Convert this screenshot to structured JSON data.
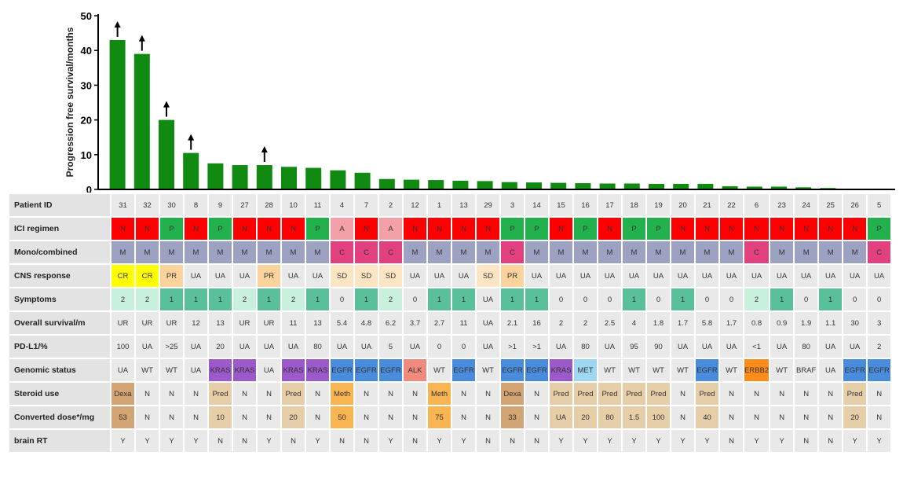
{
  "colors": {
    "bar": "#108a10",
    "N": "#ff0000",
    "P": "#22b14c",
    "A": "#f4a0a8",
    "M": "#9da2c3",
    "C": "#e2407f",
    "CR": "#ffff00",
    "PR": "#fcd39c",
    "SD": "#fde5c4",
    "sym2": "#c9efdd",
    "sym1": "#5ac09a",
    "KRAS": "#9b59c9",
    "EGFR": "#4a8cdc",
    "ALK": "#f08a7d",
    "MET": "#9fd6f2",
    "ERBB2": "#ff8c1a",
    "Dexa": "#d4a574",
    "Pred": "#e6cfa8",
    "Meth": "#f8b552"
  },
  "chart_data": {
    "type": "bar",
    "ylabel": "Progression free survival/months",
    "ylim": [
      0,
      50
    ],
    "yticks": [
      "0",
      "10",
      "20",
      "30",
      "40",
      "50"
    ],
    "categories": [
      "31",
      "32",
      "30",
      "8",
      "9",
      "27",
      "28",
      "10",
      "11",
      "4",
      "7",
      "2",
      "12",
      "1",
      "13",
      "29",
      "3",
      "14",
      "15",
      "16",
      "17",
      "18",
      "19",
      "20",
      "21",
      "22",
      "6",
      "23",
      "24",
      "25",
      "26",
      "5"
    ],
    "values": [
      43,
      39,
      20,
      10.5,
      7.5,
      7,
      7,
      6.5,
      6.2,
      5.5,
      4.8,
      3,
      2.8,
      2.7,
      2.5,
      2.4,
      2.1,
      2,
      1.9,
      1.8,
      1.7,
      1.7,
      1.6,
      1.6,
      1.6,
      0.9,
      0.8,
      0.8,
      0.6,
      0.4,
      0.2,
      0.1
    ],
    "ongoing": [
      true,
      true,
      true,
      true,
      false,
      false,
      true,
      false,
      false,
      false,
      false,
      false,
      false,
      false,
      false,
      false,
      false,
      false,
      false,
      false,
      false,
      false,
      false,
      false,
      false,
      false,
      false,
      false,
      false,
      false,
      false,
      false
    ]
  },
  "table": {
    "rows": [
      {
        "label": "Patient ID",
        "cells": [
          "31",
          "32",
          "30",
          "8",
          "9",
          "27",
          "28",
          "10",
          "11",
          "4",
          "7",
          "2",
          "12",
          "1",
          "13",
          "29",
          "3",
          "14",
          "15",
          "16",
          "17",
          "18",
          "19",
          "20",
          "21",
          "22",
          "6",
          "23",
          "24",
          "25",
          "26",
          "5"
        ],
        "colors": []
      },
      {
        "label": "ICI regimen",
        "cells": [
          "N",
          "N",
          "P",
          "N",
          "P",
          "N",
          "N",
          "N",
          "P",
          "A",
          "N",
          "A",
          "N",
          "N",
          "N",
          "N",
          "P",
          "P",
          "N",
          "P",
          "N",
          "P",
          "P",
          "N",
          "N",
          "N",
          "N",
          "N",
          "N",
          "N",
          "N",
          "P"
        ],
        "colors": [
          "N",
          "N",
          "P",
          "N",
          "P",
          "N",
          "N",
          "N",
          "P",
          "A",
          "N",
          "A",
          "N",
          "N",
          "N",
          "N",
          "P",
          "P",
          "N",
          "P",
          "N",
          "P",
          "P",
          "N",
          "N",
          "N",
          "N",
          "N",
          "N",
          "N",
          "N",
          "P"
        ]
      },
      {
        "label": "Mono/combined",
        "cells": [
          "M",
          "M",
          "M",
          "M",
          "M",
          "M",
          "M",
          "M",
          "M",
          "C",
          "C",
          "C",
          "M",
          "M",
          "M",
          "M",
          "C",
          "M",
          "M",
          "M",
          "M",
          "M",
          "M",
          "M",
          "M",
          "M",
          "C",
          "M",
          "M",
          "M",
          "M",
          "C"
        ],
        "colors": [
          "M",
          "M",
          "M",
          "M",
          "M",
          "M",
          "M",
          "M",
          "M",
          "C",
          "C",
          "C",
          "M",
          "M",
          "M",
          "M",
          "C",
          "M",
          "M",
          "M",
          "M",
          "M",
          "M",
          "M",
          "M",
          "M",
          "C",
          "M",
          "M",
          "M",
          "M",
          "C"
        ]
      },
      {
        "label": "CNS response",
        "cells": [
          "CR",
          "CR",
          "PR",
          "UA",
          "UA",
          "UA",
          "PR",
          "UA",
          "UA",
          "SD",
          "SD",
          "SD",
          "UA",
          "UA",
          "UA",
          "SD",
          "PR",
          "UA",
          "UA",
          "UA",
          "UA",
          "UA",
          "UA",
          "UA",
          "UA",
          "UA",
          "UA",
          "UA",
          "UA",
          "UA",
          "UA",
          "UA"
        ],
        "colors": [
          "CR",
          "CR",
          "PR",
          "",
          "",
          "",
          "PR",
          "",
          "",
          "SD",
          "SD",
          "SD",
          "",
          "",
          "",
          "SD",
          "PR",
          "",
          "",
          "",
          "",
          "",
          "",
          "",
          "",
          "",
          "",
          "",
          "",
          "",
          "",
          ""
        ]
      },
      {
        "label": "Symptoms",
        "cells": [
          "2",
          "2",
          "1",
          "1",
          "1",
          "2",
          "1",
          "2",
          "1",
          "0",
          "1",
          "2",
          "0",
          "1",
          "1",
          "UA",
          "1",
          "1",
          "0",
          "0",
          "0",
          "1",
          "0",
          "1",
          "0",
          "0",
          "2",
          "1",
          "0",
          "1",
          "0",
          "0"
        ],
        "colors": [
          "sym2",
          "sym2",
          "sym1",
          "sym1",
          "sym1",
          "sym2",
          "sym1",
          "sym2",
          "sym1",
          "",
          "sym1",
          "sym2",
          "",
          "sym1",
          "sym1",
          "",
          "sym1",
          "sym1",
          "",
          "",
          "",
          "sym1",
          "",
          "sym1",
          "",
          "",
          "sym2",
          "sym1",
          "",
          "sym1",
          "",
          ""
        ]
      },
      {
        "label": "Overall survival/m",
        "cells": [
          "UR",
          "UR",
          "UR",
          "12",
          "13",
          "UR",
          "UR",
          "11",
          "13",
          "5.4",
          "4.8",
          "6.2",
          "3.7",
          "2.7",
          "11",
          "UA",
          "2.1",
          "16",
          "2",
          "2",
          "2.5",
          "4",
          "1.8",
          "1.7",
          "5.8",
          "1.7",
          "0.8",
          "0.9",
          "1.9",
          "1.1",
          "30",
          "3"
        ],
        "colors": []
      },
      {
        "label": "PD-L1/%",
        "cells": [
          "100",
          "UA",
          ">25",
          "UA",
          "20",
          "UA",
          "UA",
          "UA",
          "80",
          "UA",
          "UA",
          "5",
          "UA",
          "0",
          "0",
          "UA",
          ">1",
          ">1",
          "UA",
          "80",
          "UA",
          "95",
          "90",
          "UA",
          "UA",
          "UA",
          "<1",
          "UA",
          "80",
          "UA",
          "UA",
          "2"
        ],
        "colors": []
      },
      {
        "label": "Genomic status",
        "cells": [
          "UA",
          "WT",
          "WT",
          "UA",
          "KRAS",
          "KRAS",
          "UA",
          "KRAS",
          "KRAS",
          "EGFR",
          "EGFR",
          "EGFR",
          "ALK",
          "WT",
          "EGFR",
          "WT",
          "EGFR",
          "EGFR",
          "KRAS",
          "MET",
          "WT",
          "WT",
          "WT",
          "WT",
          "EGFR",
          "WT",
          "ERBB2",
          "WT",
          "BRAF",
          "UA",
          "EGFR",
          "EGFR"
        ],
        "colors": [
          "",
          "",
          "",
          "",
          "KRAS",
          "KRAS",
          "",
          "KRAS",
          "KRAS",
          "EGFR",
          "EGFR",
          "EGFR",
          "ALK",
          "",
          "EGFR",
          "",
          "EGFR",
          "EGFR",
          "KRAS",
          "MET",
          "",
          "",
          "",
          "",
          "EGFR",
          "",
          "ERBB2",
          "",
          "",
          "",
          "EGFR",
          "EGFR"
        ]
      },
      {
        "label": "Steroid use",
        "cells": [
          "Dexa",
          "N",
          "N",
          "N",
          "Pred",
          "N",
          "N",
          "Pred",
          "N",
          "Meth",
          "N",
          "N",
          "N",
          "Meth",
          "N",
          "N",
          "Dexa",
          "N",
          "Pred",
          "Pred",
          "Pred",
          "Pred",
          "Pred",
          "N",
          "Pred",
          "N",
          "N",
          "N",
          "N",
          "N",
          "Pred",
          "N"
        ],
        "colors": [
          "Dexa",
          "",
          "",
          "",
          "Pred",
          "",
          "",
          "Pred",
          "",
          "Meth",
          "",
          "",
          "",
          "Meth",
          "",
          "",
          "Dexa",
          "",
          "Pred",
          "Pred",
          "Pred",
          "Pred",
          "Pred",
          "",
          "Pred",
          "",
          "",
          "",
          "",
          "",
          "Pred",
          ""
        ]
      },
      {
        "label": "Converted dose*/mg",
        "cells": [
          "53",
          "N",
          "N",
          "N",
          "10",
          "N",
          "N",
          "20",
          "N",
          "50",
          "N",
          "N",
          "N",
          "75",
          "N",
          "N",
          "33",
          "N",
          "UA",
          "20",
          "80",
          "1.5",
          "100",
          "N",
          "40",
          "N",
          "N",
          "N",
          "N",
          "N",
          "20",
          "N"
        ],
        "colors": [
          "Dexa",
          "",
          "",
          "",
          "Pred",
          "",
          "",
          "Pred",
          "",
          "Meth",
          "",
          "",
          "",
          "Meth",
          "",
          "",
          "Dexa",
          "",
          "Pred",
          "Pred",
          "Pred",
          "Pred",
          "Pred",
          "",
          "Pred",
          "",
          "",
          "",
          "",
          "",
          "Pred",
          ""
        ]
      },
      {
        "label": "brain RT",
        "cells": [
          "Y",
          "Y",
          "Y",
          "Y",
          "N",
          "N",
          "Y",
          "N",
          "Y",
          "N",
          "N",
          "Y",
          "N",
          "Y",
          "Y",
          "N",
          "N",
          "N",
          "Y",
          "Y",
          "Y",
          "Y",
          "Y",
          "Y",
          "Y",
          "N",
          "Y",
          "Y",
          "N",
          "N",
          "Y",
          "Y"
        ],
        "colors": []
      }
    ]
  }
}
